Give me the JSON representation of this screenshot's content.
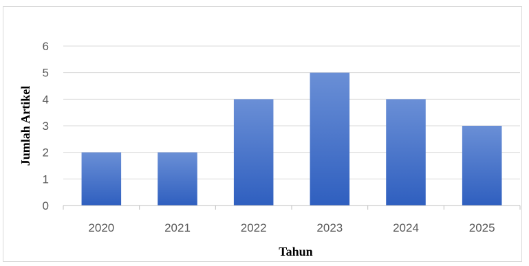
{
  "chart_data": {
    "type": "bar",
    "categories": [
      "2020",
      "2021",
      "2022",
      "2023",
      "2024",
      "2025"
    ],
    "values": [
      2,
      2,
      4,
      5,
      4,
      3
    ],
    "title": "",
    "xlabel": "Tahun",
    "ylabel": "Jumlah Artikel",
    "ylim": [
      0,
      6
    ],
    "yticks": [
      0,
      1,
      2,
      3,
      4,
      5,
      6
    ],
    "grid": true,
    "legend": "none",
    "colors": {
      "bar_top": "#6a8fd6",
      "bar_bottom": "#2f5fbf",
      "grid": "#d9d9d9",
      "axis": "#bfbfbf"
    }
  }
}
